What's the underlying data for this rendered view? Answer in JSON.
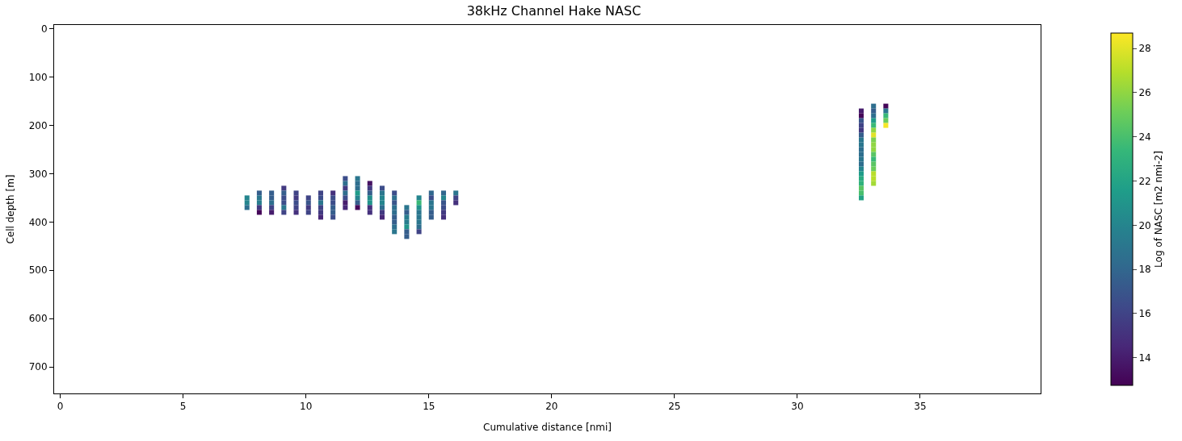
{
  "chart_data": {
    "type": "scatter",
    "title": "38kHz Channel Hake NASC",
    "xlabel": "Cumulative distance [nmi]",
    "ylabel": "Cell depth [m]",
    "clabel": "Log of NASC [m2 nmi-2]",
    "marker": "square",
    "x": [
      33.1,
      33.6,
      32.6,
      33.1,
      33.6,
      32.6,
      33.1,
      33.6,
      32.6,
      33.1,
      33.6,
      32.6,
      33.1,
      33.6,
      32.6,
      33.1,
      32.6,
      33.1,
      32.6,
      33.1,
      32.6,
      33.1,
      32.6,
      33.1,
      32.6,
      33.1,
      32.6,
      33.1,
      32.6,
      33.1,
      32.6,
      33.1,
      32.6,
      33.1,
      11.6,
      12.1,
      32.6,
      33.1,
      11.6,
      12.1,
      12.6,
      32.6,
      33.1,
      9.1,
      11.6,
      12.1,
      12.6,
      13.1,
      32.6,
      8.1,
      8.6,
      9.1,
      9.6,
      10.6,
      11.1,
      11.6,
      12.1,
      12.6,
      13.1,
      13.6,
      15.1,
      15.6,
      16.1,
      32.6,
      7.6,
      8.1,
      8.6,
      9.1,
      9.6,
      10.1,
      10.6,
      11.1,
      11.6,
      12.1,
      12.6,
      13.1,
      13.6,
      14.6,
      15.1,
      15.6,
      16.1,
      32.6,
      7.6,
      8.1,
      8.6,
      9.1,
      9.6,
      10.1,
      10.6,
      11.1,
      11.6,
      12.1,
      12.6,
      13.1,
      13.6,
      14.6,
      15.1,
      15.6,
      16.1,
      7.6,
      8.1,
      8.6,
      9.1,
      9.6,
      10.1,
      10.6,
      11.1,
      11.6,
      12.1,
      12.6,
      13.1,
      13.6,
      14.1,
      14.6,
      15.1,
      15.6,
      8.1,
      8.6,
      9.1,
      9.6,
      10.1,
      10.6,
      11.1,
      12.6,
      13.1,
      13.6,
      14.1,
      14.6,
      15.1,
      15.6,
      10.6,
      11.1,
      13.1,
      13.6,
      14.1,
      14.6,
      15.1,
      15.6,
      13.6,
      14.1,
      14.6,
      13.6,
      14.1,
      14.6,
      13.6,
      14.1,
      14.6,
      14.1
    ],
    "values": [
      160,
      160,
      170,
      170,
      170,
      180,
      180,
      180,
      190,
      190,
      190,
      200,
      200,
      200,
      210,
      210,
      220,
      220,
      230,
      230,
      240,
      240,
      250,
      250,
      260,
      260,
      270,
      270,
      280,
      280,
      290,
      290,
      300,
      300,
      310,
      310,
      310,
      310,
      320,
      320,
      320,
      320,
      320,
      330,
      330,
      330,
      330,
      330,
      330,
      340,
      340,
      340,
      340,
      340,
      340,
      340,
      340,
      340,
      340,
      340,
      340,
      340,
      340,
      340,
      350,
      350,
      350,
      350,
      350,
      350,
      350,
      350,
      350,
      350,
      350,
      350,
      350,
      350,
      350,
      350,
      350,
      350,
      360,
      360,
      360,
      360,
      360,
      360,
      360,
      360,
      360,
      360,
      360,
      360,
      360,
      360,
      360,
      360,
      360,
      370,
      370,
      370,
      370,
      370,
      370,
      370,
      370,
      370,
      370,
      370,
      370,
      370,
      370,
      370,
      370,
      370,
      380,
      380,
      380,
      380,
      380,
      380,
      380,
      380,
      380,
      380,
      380,
      380,
      380,
      380,
      390,
      390,
      390,
      390,
      390,
      390,
      390,
      390,
      400,
      400,
      400,
      410,
      410,
      410,
      420,
      420,
      420,
      430
    ],
    "cvalues": [
      18.5,
      13,
      14,
      17.5,
      19,
      13,
      18.5,
      23.5,
      17,
      21.5,
      25,
      16,
      23.5,
      28.5,
      15.5,
      26,
      17.5,
      28,
      19,
      25.5,
      19,
      26,
      18.5,
      26,
      18.5,
      24.5,
      19,
      23.5,
      18.5,
      24.5,
      20,
      25,
      21.5,
      27,
      16.5,
      19,
      22.5,
      27,
      18.5,
      18.5,
      13.5,
      23,
      26.5,
      15.5,
      15.5,
      18.5,
      15.5,
      16.5,
      24.5,
      17.5,
      17.5,
      17.5,
      16,
      16,
      15,
      18.5,
      21.5,
      17.5,
      19,
      16.5,
      18,
      18,
      19,
      24,
      20,
      19,
      17.5,
      16.5,
      15.5,
      16,
      16.5,
      16.5,
      16.5,
      20,
      20.5,
      20,
      18.5,
      20,
      16.5,
      20,
      16,
      22,
      20,
      19.5,
      18.5,
      16.5,
      16.5,
      17,
      19,
      16.5,
      14,
      17.5,
      21,
      20,
      17,
      23.5,
      19,
      17,
      15,
      18.5,
      15.5,
      16,
      19,
      16,
      15.5,
      16,
      17.5,
      14.5,
      13,
      15,
      18.5,
      18.5,
      19,
      21,
      19,
      16.5,
      13,
      14,
      16,
      15,
      16,
      15.5,
      17.5,
      15,
      15.5,
      18.5,
      17.5,
      19,
      17.5,
      15.5,
      14.5,
      16.5,
      14.5,
      17.5,
      19.5,
      19,
      17.5,
      15,
      17.5,
      19.5,
      19,
      18.5,
      21,
      18.5,
      19,
      17.5,
      16,
      17.5
    ],
    "clim": [
      12.75,
      28.7
    ],
    "cticks": [
      14,
      16,
      18,
      20,
      22,
      24,
      26,
      28
    ],
    "xlim": [
      -0.25,
      39.9
    ],
    "xticks": [
      0,
      5,
      10,
      15,
      20,
      25,
      30,
      35
    ],
    "ylim": [
      755,
      -8
    ],
    "yticks": [
      0,
      100,
      200,
      300,
      400,
      500,
      600,
      700
    ]
  }
}
